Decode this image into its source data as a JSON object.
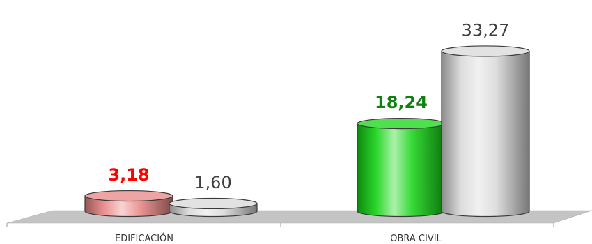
{
  "chart_data": {
    "type": "bar",
    "style": "3d-cylinder",
    "categories": [
      "EDIFICACIÓN",
      "OBRA CIVIL"
    ],
    "series": [
      {
        "values": [
          3.18,
          18.24
        ],
        "value_labels": [
          "3,18",
          "18,24"
        ],
        "colors": [
          "#e98585",
          "#14d414"
        ],
        "label_colors": [
          "#ff0000",
          "#108010"
        ],
        "label_bold": true
      },
      {
        "values": [
          1.6,
          33.27
        ],
        "value_labels": [
          "1,60",
          "33,27"
        ],
        "colors": [
          "#d8d8d8",
          "#d8d8d8"
        ],
        "label_colors": [
          "#404040",
          "#404040"
        ],
        "label_bold": false
      }
    ],
    "ylim": [
      0,
      40
    ],
    "grid": false,
    "legend": "none",
    "floor_color": "#bdbdbd"
  }
}
